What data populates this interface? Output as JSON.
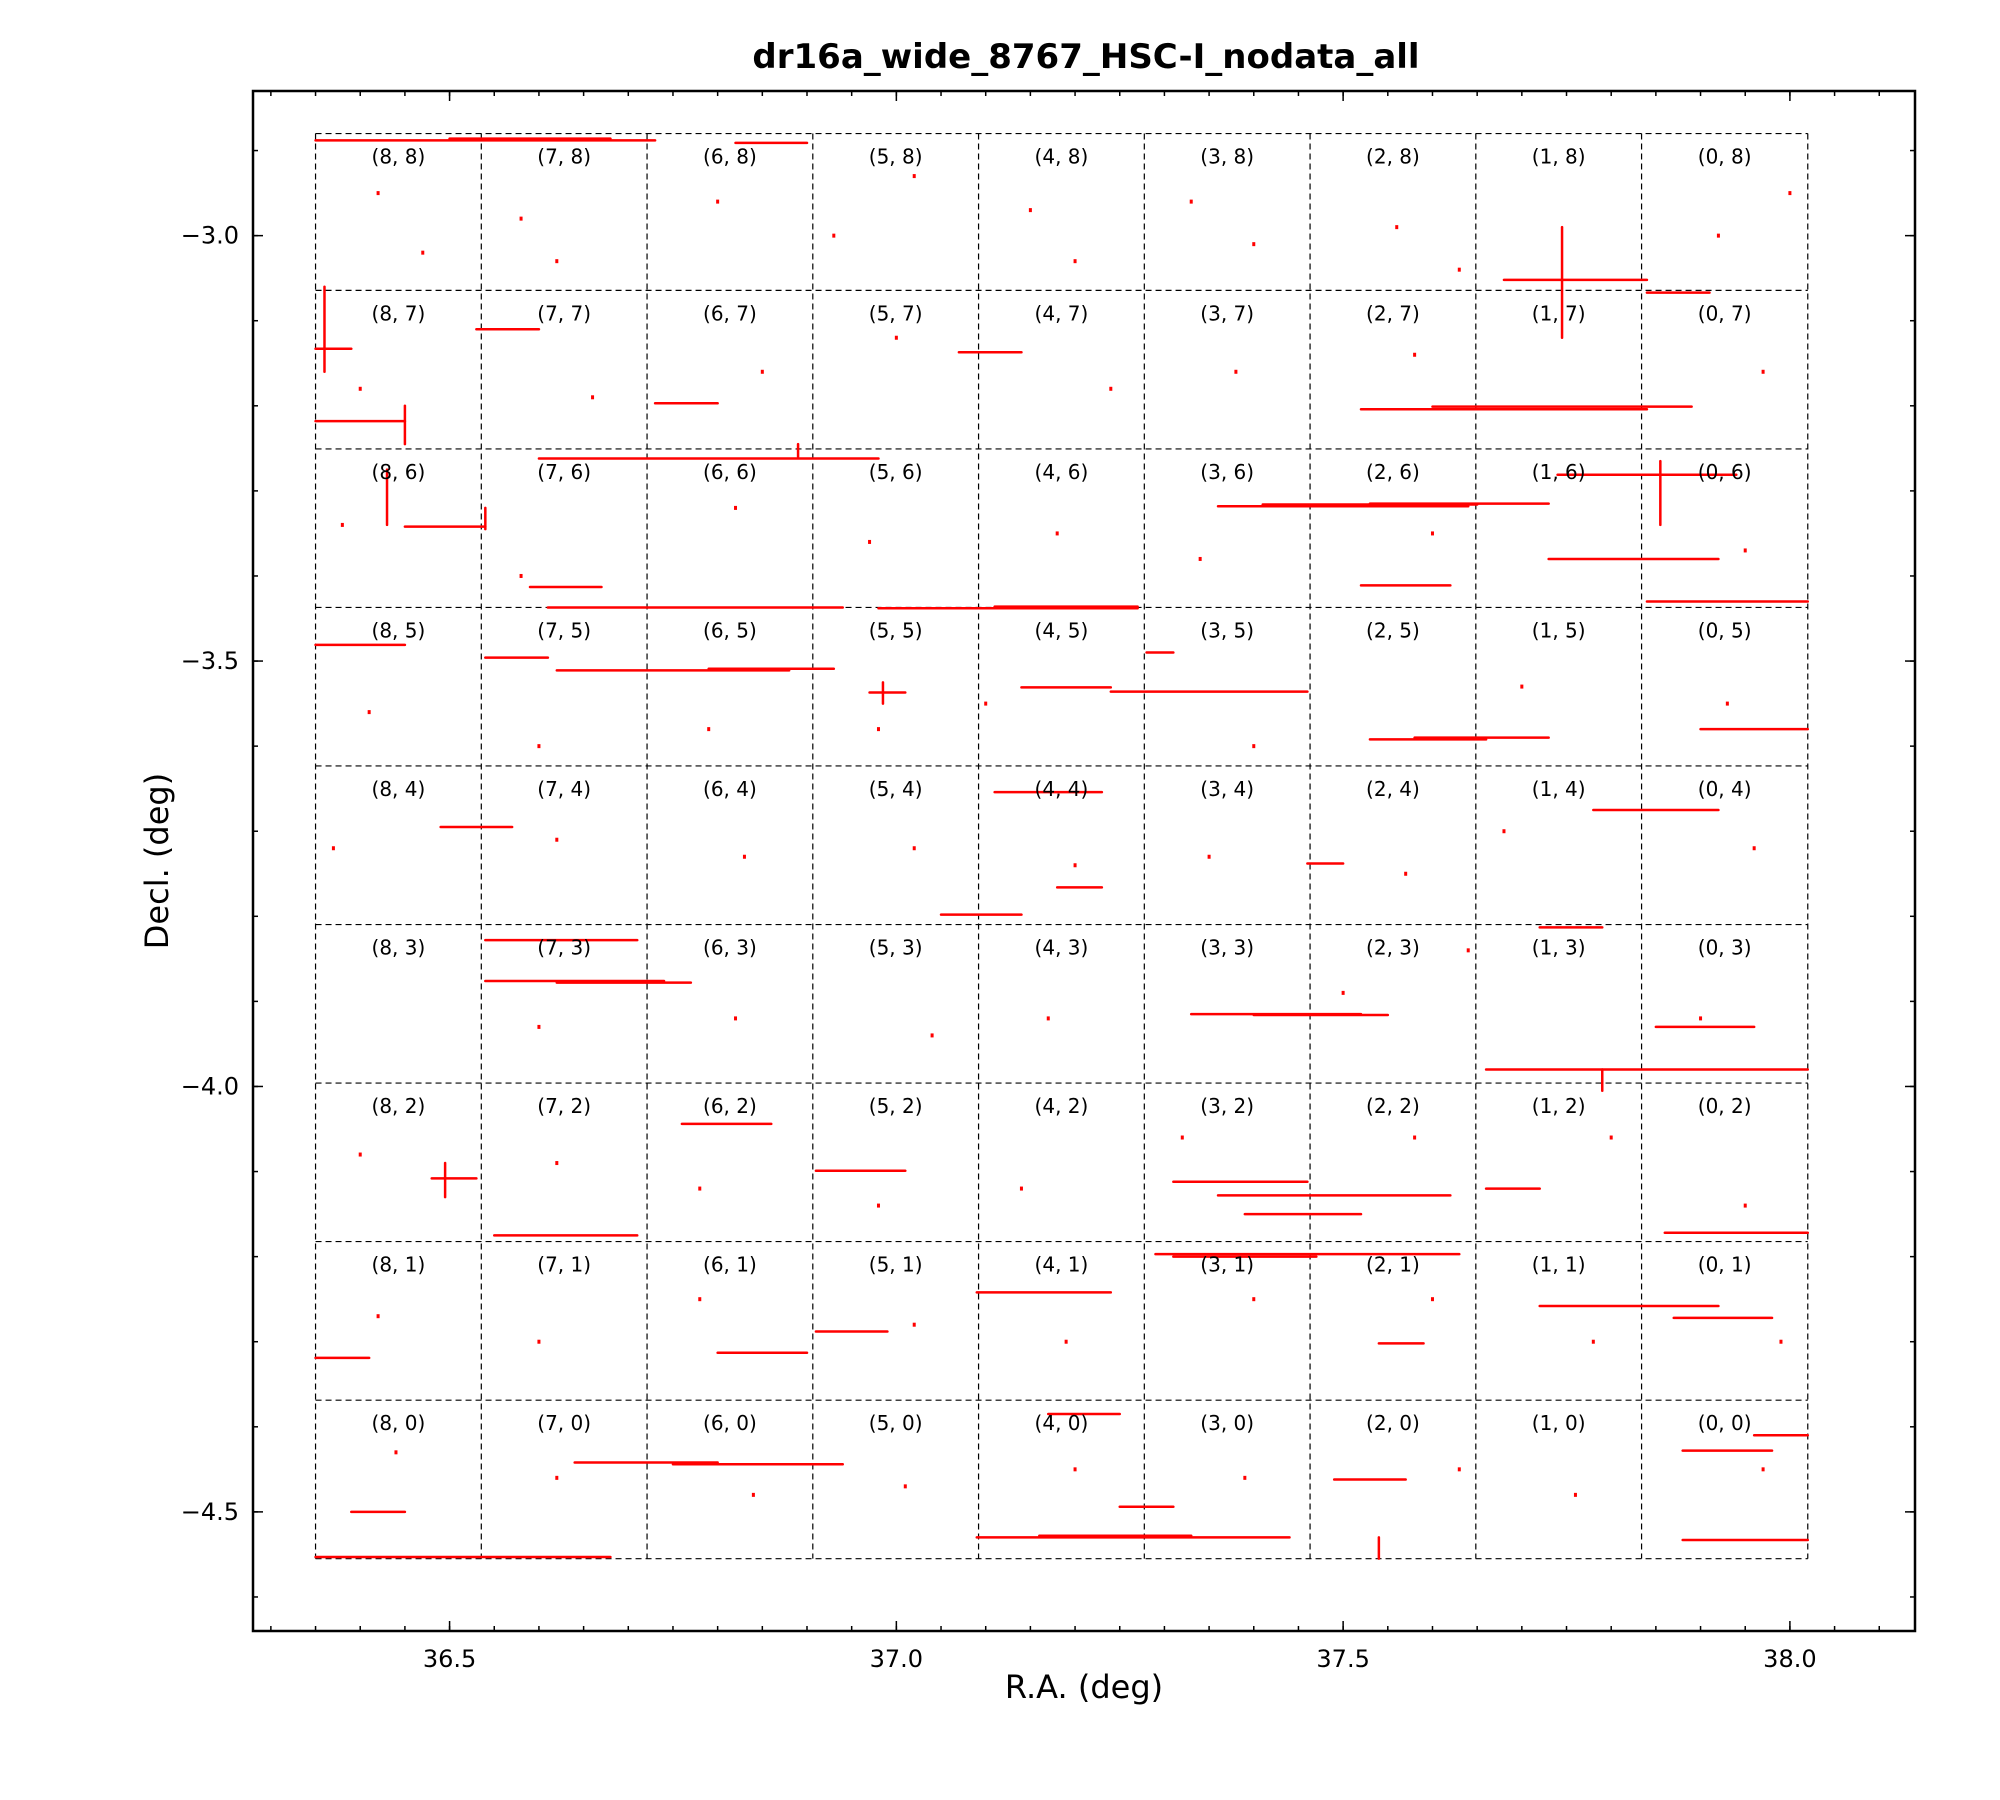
{
  "chart_data": {
    "type": "scatter",
    "title": "dr16a_wide_8767_HSC-I_nodata_all",
    "xlabel": "R.A.  (deg)",
    "ylabel": "Decl. (deg)",
    "xlim": [
      36.28,
      38.14
    ],
    "ylim": [
      -4.64,
      -2.83
    ],
    "x_ticks": [
      {
        "value": 36.5,
        "label": "36.5"
      },
      {
        "value": 37.0,
        "label": "37.0"
      },
      {
        "value": 37.5,
        "label": "37.5"
      },
      {
        "value": 38.0,
        "label": "38.0"
      }
    ],
    "y_ticks": [
      {
        "value": -3.0,
        "label": "−3.0"
      },
      {
        "value": -3.5,
        "label": "−3.5"
      },
      {
        "value": -4.0,
        "label": "−4.0"
      },
      {
        "value": -4.5,
        "label": "−4.5"
      }
    ],
    "minor_tick_step_x": 0.05,
    "minor_tick_step_y": 0.1,
    "patch_grid": {
      "ra_edges": [
        36.35,
        36.5355,
        36.721,
        36.9065,
        37.092,
        37.2775,
        37.463,
        37.6485,
        37.834,
        38.02
      ],
      "dec_edges": [
        -4.555,
        -4.3687,
        -4.1823,
        -3.996,
        -3.8097,
        -3.6233,
        -3.437,
        -3.2507,
        -3.0643,
        -2.88
      ],
      "labels_by_row_top_to_bottom": [
        [
          "(8, 8)",
          "(7, 8)",
          "(6, 8)",
          "(5, 8)",
          "(4, 8)",
          "(3, 8)",
          "(2, 8)",
          "(1, 8)",
          "(0, 8)"
        ],
        [
          "(8, 7)",
          "(7, 7)",
          "(6, 7)",
          "(5, 7)",
          "(4, 7)",
          "(3, 7)",
          "(2, 7)",
          "(1, 7)",
          "(0, 7)"
        ],
        [
          "(8, 6)",
          "(7, 6)",
          "(6, 6)",
          "(5, 6)",
          "(4, 6)",
          "(3, 6)",
          "(2, 6)",
          "(1, 6)",
          "(0, 6)"
        ],
        [
          "(8, 5)",
          "(7, 5)",
          "(6, 5)",
          "(5, 5)",
          "(4, 5)",
          "(3, 5)",
          "(2, 5)",
          "(1, 5)",
          "(0, 5)"
        ],
        [
          "(8, 4)",
          "(7, 4)",
          "(6, 4)",
          "(5, 4)",
          "(4, 4)",
          "(3, 4)",
          "(2, 4)",
          "(1, 4)",
          "(0, 4)"
        ],
        [
          "(8, 3)",
          "(7, 3)",
          "(6, 3)",
          "(5, 3)",
          "(4, 3)",
          "(3, 3)",
          "(2, 3)",
          "(1, 3)",
          "(0, 3)"
        ],
        [
          "(8, 2)",
          "(7, 2)",
          "(6, 2)",
          "(5, 2)",
          "(4, 2)",
          "(3, 2)",
          "(2, 2)",
          "(1, 2)",
          "(0, 2)"
        ],
        [
          "(8, 1)",
          "(7, 1)",
          "(6, 1)",
          "(5, 1)",
          "(4, 1)",
          "(3, 1)",
          "(2, 1)",
          "(1, 1)",
          "(0, 1)"
        ],
        [
          "(8, 0)",
          "(7, 0)",
          "(6, 0)",
          "(5, 0)",
          "(4, 0)",
          "(3, 0)",
          "(2, 0)",
          "(1, 0)",
          "(0, 0)"
        ]
      ]
    },
    "mask_color": "#ff0000",
    "mask_segments": [
      {
        "ra": [
          36.35,
          36.73
        ],
        "dec": [
          -2.888,
          -2.888
        ]
      },
      {
        "ra": [
          36.5,
          36.68
        ],
        "dec": [
          -2.886,
          -2.886
        ]
      },
      {
        "ra": [
          36.82,
          36.9
        ],
        "dec": [
          -2.891,
          -2.891
        ]
      },
      {
        "ra": [
          37.68,
          37.84
        ],
        "dec": [
          -3.052,
          -3.052
        ]
      },
      {
        "ra": [
          37.745,
          37.745
        ],
        "dec": [
          -2.99,
          -3.12
        ]
      },
      {
        "ra": [
          37.84,
          37.91
        ],
        "dec": [
          -3.067,
          -3.067
        ]
      },
      {
        "ra": [
          36.36,
          36.36
        ],
        "dec": [
          -3.06,
          -3.16
        ]
      },
      {
        "ra": [
          36.35,
          36.39
        ],
        "dec": [
          -3.133,
          -3.133
        ]
      },
      {
        "ra": [
          36.35,
          36.45
        ],
        "dec": [
          -3.218,
          -3.218
        ]
      },
      {
        "ra": [
          36.45,
          36.45
        ],
        "dec": [
          -3.2,
          -3.245
        ]
      },
      {
        "ra": [
          36.53,
          36.6
        ],
        "dec": [
          -3.11,
          -3.11
        ]
      },
      {
        "ra": [
          36.73,
          36.8
        ],
        "dec": [
          -3.197,
          -3.197
        ]
      },
      {
        "ra": [
          37.07,
          37.14
        ],
        "dec": [
          -3.137,
          -3.137
        ]
      },
      {
        "ra": [
          37.52,
          37.84
        ],
        "dec": [
          -3.204,
          -3.204
        ]
      },
      {
        "ra": [
          37.6,
          37.89
        ],
        "dec": [
          -3.201,
          -3.201
        ]
      },
      {
        "ra": [
          36.89,
          36.89
        ],
        "dec": [
          -3.245,
          -3.26
        ]
      },
      {
        "ra": [
          36.6,
          36.98
        ],
        "dec": [
          -3.262,
          -3.262
        ]
      },
      {
        "ra": [
          36.43,
          36.43
        ],
        "dec": [
          -3.275,
          -3.34
        ]
      },
      {
        "ra": [
          36.45,
          36.54
        ],
        "dec": [
          -3.342,
          -3.342
        ]
      },
      {
        "ra": [
          36.54,
          36.54
        ],
        "dec": [
          -3.32,
          -3.345
        ]
      },
      {
        "ra": [
          37.36,
          37.64
        ],
        "dec": [
          -3.318,
          -3.318
        ]
      },
      {
        "ra": [
          37.41,
          37.65
        ],
        "dec": [
          -3.316,
          -3.316
        ]
      },
      {
        "ra": [
          37.53,
          37.73
        ],
        "dec": [
          -3.315,
          -3.315
        ]
      },
      {
        "ra": [
          37.74,
          37.94
        ],
        "dec": [
          -3.281,
          -3.281
        ]
      },
      {
        "ra": [
          37.855,
          37.855
        ],
        "dec": [
          -3.265,
          -3.34
        ]
      },
      {
        "ra": [
          37.73,
          37.92
        ],
        "dec": [
          -3.38,
          -3.38
        ]
      },
      {
        "ra": [
          37.52,
          37.62
        ],
        "dec": [
          -3.411,
          -3.411
        ]
      },
      {
        "ra": [
          36.59,
          36.67
        ],
        "dec": [
          -3.413,
          -3.413
        ]
      },
      {
        "ra": [
          36.61,
          36.94
        ],
        "dec": [
          -3.437,
          -3.437
        ]
      },
      {
        "ra": [
          36.98,
          37.27
        ],
        "dec": [
          -3.438,
          -3.438
        ]
      },
      {
        "ra": [
          37.11,
          37.27
        ],
        "dec": [
          -3.436,
          -3.436
        ]
      },
      {
        "ra": [
          37.84,
          38.02
        ],
        "dec": [
          -3.43,
          -3.43
        ]
      },
      {
        "ra": [
          36.35,
          36.45
        ],
        "dec": [
          -3.481,
          -3.481
        ]
      },
      {
        "ra": [
          36.54,
          36.61
        ],
        "dec": [
          -3.496,
          -3.496
        ]
      },
      {
        "ra": [
          36.62,
          36.88
        ],
        "dec": [
          -3.511,
          -3.511
        ]
      },
      {
        "ra": [
          36.79,
          36.93
        ],
        "dec": [
          -3.509,
          -3.509
        ]
      },
      {
        "ra": [
          37.14,
          37.24
        ],
        "dec": [
          -3.531,
          -3.531
        ]
      },
      {
        "ra": [
          37.24,
          37.46
        ],
        "dec": [
          -3.536,
          -3.536
        ]
      },
      {
        "ra": [
          37.28,
          37.31
        ],
        "dec": [
          -3.49,
          -3.49
        ]
      },
      {
        "ra": [
          36.97,
          37.01
        ],
        "dec": [
          -3.537,
          -3.537
        ]
      },
      {
        "ra": [
          36.985,
          36.985
        ],
        "dec": [
          -3.525,
          -3.55
        ]
      },
      {
        "ra": [
          37.58,
          37.73
        ],
        "dec": [
          -3.59,
          -3.59
        ]
      },
      {
        "ra": [
          37.53,
          37.66
        ],
        "dec": [
          -3.592,
          -3.592
        ]
      },
      {
        "ra": [
          37.9,
          38.02
        ],
        "dec": [
          -3.58,
          -3.58
        ]
      },
      {
        "ra": [
          37.11,
          37.23
        ],
        "dec": [
          -3.654,
          -3.654
        ]
      },
      {
        "ra": [
          36.49,
          36.57
        ],
        "dec": [
          -3.695,
          -3.695
        ]
      },
      {
        "ra": [
          37.78,
          37.92
        ],
        "dec": [
          -3.675,
          -3.675
        ]
      },
      {
        "ra": [
          37.46,
          37.5
        ],
        "dec": [
          -3.738,
          -3.738
        ]
      },
      {
        "ra": [
          37.72,
          37.79
        ],
        "dec": [
          -3.813,
          -3.813
        ]
      },
      {
        "ra": [
          37.18,
          37.23
        ],
        "dec": [
          -3.766,
          -3.766
        ]
      },
      {
        "ra": [
          37.05,
          37.14
        ],
        "dec": [
          -3.798,
          -3.798
        ]
      },
      {
        "ra": [
          36.54,
          36.71
        ],
        "dec": [
          -3.828,
          -3.828
        ]
      },
      {
        "ra": [
          36.54,
          36.74
        ],
        "dec": [
          -3.876,
          -3.876
        ]
      },
      {
        "ra": [
          36.62,
          36.77
        ],
        "dec": [
          -3.878,
          -3.878
        ]
      },
      {
        "ra": [
          37.33,
          37.52
        ],
        "dec": [
          -3.915,
          -3.915
        ]
      },
      {
        "ra": [
          37.4,
          37.55
        ],
        "dec": [
          -3.916,
          -3.916
        ]
      },
      {
        "ra": [
          37.85,
          37.96
        ],
        "dec": [
          -3.93,
          -3.93
        ]
      },
      {
        "ra": [
          37.66,
          38.02
        ],
        "dec": [
          -3.98,
          -3.98
        ]
      },
      {
        "ra": [
          37.79,
          37.79
        ],
        "dec": [
          -3.98,
          -4.005
        ]
      },
      {
        "ra": [
          36.48,
          36.53
        ],
        "dec": [
          -4.108,
          -4.108
        ]
      },
      {
        "ra": [
          36.495,
          36.495
        ],
        "dec": [
          -4.09,
          -4.13
        ]
      },
      {
        "ra": [
          36.76,
          36.86
        ],
        "dec": [
          -4.044,
          -4.044
        ]
      },
      {
        "ra": [
          36.91,
          37.01
        ],
        "dec": [
          -4.099,
          -4.099
        ]
      },
      {
        "ra": [
          37.31,
          37.46
        ],
        "dec": [
          -4.112,
          -4.112
        ]
      },
      {
        "ra": [
          37.36,
          37.62
        ],
        "dec": [
          -4.128,
          -4.128
        ]
      },
      {
        "ra": [
          37.39,
          37.52
        ],
        "dec": [
          -4.15,
          -4.15
        ]
      },
      {
        "ra": [
          37.66,
          37.72
        ],
        "dec": [
          -4.12,
          -4.12
        ]
      },
      {
        "ra": [
          37.86,
          38.02
        ],
        "dec": [
          -4.172,
          -4.172
        ]
      },
      {
        "ra": [
          36.55,
          36.71
        ],
        "dec": [
          -4.175,
          -4.175
        ]
      },
      {
        "ra": [
          37.29,
          37.63
        ],
        "dec": [
          -4.197,
          -4.197
        ]
      },
      {
        "ra": [
          37.31,
          37.47
        ],
        "dec": [
          -4.2,
          -4.2
        ]
      },
      {
        "ra": [
          37.09,
          37.24
        ],
        "dec": [
          -4.242,
          -4.242
        ]
      },
      {
        "ra": [
          37.72,
          37.92
        ],
        "dec": [
          -4.258,
          -4.258
        ]
      },
      {
        "ra": [
          37.87,
          37.98
        ],
        "dec": [
          -4.272,
          -4.272
        ]
      },
      {
        "ra": [
          36.91,
          36.99
        ],
        "dec": [
          -4.288,
          -4.288
        ]
      },
      {
        "ra": [
          36.8,
          36.9
        ],
        "dec": [
          -4.313,
          -4.313
        ]
      },
      {
        "ra": [
          36.35,
          36.41
        ],
        "dec": [
          -4.319,
          -4.319
        ]
      },
      {
        "ra": [
          37.54,
          37.59
        ],
        "dec": [
          -4.302,
          -4.302
        ]
      },
      {
        "ra": [
          36.64,
          36.8
        ],
        "dec": [
          -4.442,
          -4.442
        ]
      },
      {
        "ra": [
          36.75,
          36.94
        ],
        "dec": [
          -4.444,
          -4.444
        ]
      },
      {
        "ra": [
          37.88,
          37.98
        ],
        "dec": [
          -4.428,
          -4.428
        ]
      },
      {
        "ra": [
          37.96,
          38.02
        ],
        "dec": [
          -4.41,
          -4.41
        ]
      },
      {
        "ra": [
          37.17,
          37.25
        ],
        "dec": [
          -4.385,
          -4.385
        ]
      },
      {
        "ra": [
          37.25,
          37.31
        ],
        "dec": [
          -4.494,
          -4.494
        ]
      },
      {
        "ra": [
          36.39,
          36.45
        ],
        "dec": [
          -4.5,
          -4.5
        ]
      },
      {
        "ra": [
          37.09,
          37.44
        ],
        "dec": [
          -4.53,
          -4.53
        ]
      },
      {
        "ra": [
          37.16,
          37.33
        ],
        "dec": [
          -4.528,
          -4.528
        ]
      },
      {
        "ra": [
          37.88,
          38.02
        ],
        "dec": [
          -4.533,
          -4.533
        ]
      },
      {
        "ra": [
          36.35,
          36.68
        ],
        "dec": [
          -4.553,
          -4.553
        ]
      },
      {
        "ra": [
          37.49,
          37.57
        ],
        "dec": [
          -4.462,
          -4.462
        ]
      },
      {
        "ra": [
          37.54,
          37.54
        ],
        "dec": [
          -4.53,
          -4.555
        ]
      }
    ],
    "mask_dots": [
      [
        36.42,
        -2.95
      ],
      [
        36.47,
        -3.02
      ],
      [
        36.58,
        -2.98
      ],
      [
        36.62,
        -3.03
      ],
      [
        36.8,
        -2.96
      ],
      [
        36.93,
        -3.0
      ],
      [
        37.02,
        -2.93
      ],
      [
        37.15,
        -2.97
      ],
      [
        37.2,
        -3.03
      ],
      [
        37.33,
        -2.96
      ],
      [
        37.4,
        -3.01
      ],
      [
        37.56,
        -2.99
      ],
      [
        37.63,
        -3.04
      ],
      [
        37.92,
        -3.0
      ],
      [
        38.0,
        -2.95
      ],
      [
        36.4,
        -3.18
      ],
      [
        36.66,
        -3.19
      ],
      [
        36.85,
        -3.16
      ],
      [
        37.0,
        -3.12
      ],
      [
        37.24,
        -3.18
      ],
      [
        37.38,
        -3.16
      ],
      [
        37.58,
        -3.14
      ],
      [
        37.97,
        -3.16
      ],
      [
        36.38,
        -3.34
      ],
      [
        36.58,
        -3.4
      ],
      [
        36.82,
        -3.32
      ],
      [
        36.97,
        -3.36
      ],
      [
        37.18,
        -3.35
      ],
      [
        37.34,
        -3.38
      ],
      [
        37.6,
        -3.35
      ],
      [
        37.95,
        -3.37
      ],
      [
        36.41,
        -3.56
      ],
      [
        36.6,
        -3.6
      ],
      [
        36.79,
        -3.58
      ],
      [
        36.98,
        -3.58
      ],
      [
        37.1,
        -3.55
      ],
      [
        37.4,
        -3.6
      ],
      [
        37.7,
        -3.53
      ],
      [
        37.93,
        -3.55
      ],
      [
        36.37,
        -3.72
      ],
      [
        36.62,
        -3.71
      ],
      [
        36.83,
        -3.73
      ],
      [
        37.02,
        -3.72
      ],
      [
        37.2,
        -3.74
      ],
      [
        37.35,
        -3.73
      ],
      [
        37.57,
        -3.75
      ],
      [
        37.68,
        -3.7
      ],
      [
        37.96,
        -3.72
      ],
      [
        36.6,
        -3.93
      ],
      [
        36.82,
        -3.92
      ],
      [
        37.04,
        -3.94
      ],
      [
        37.17,
        -3.92
      ],
      [
        37.5,
        -3.89
      ],
      [
        37.64,
        -3.84
      ],
      [
        37.9,
        -3.92
      ],
      [
        36.4,
        -4.08
      ],
      [
        36.62,
        -4.09
      ],
      [
        36.78,
        -4.12
      ],
      [
        36.98,
        -4.14
      ],
      [
        37.14,
        -4.12
      ],
      [
        37.32,
        -4.06
      ],
      [
        37.58,
        -4.06
      ],
      [
        37.8,
        -4.06
      ],
      [
        37.95,
        -4.14
      ],
      [
        36.42,
        -4.27
      ],
      [
        36.6,
        -4.3
      ],
      [
        36.78,
        -4.25
      ],
      [
        37.02,
        -4.28
      ],
      [
        37.19,
        -4.3
      ],
      [
        37.4,
        -4.25
      ],
      [
        37.6,
        -4.25
      ],
      [
        37.78,
        -4.3
      ],
      [
        37.99,
        -4.3
      ],
      [
        36.44,
        -4.43
      ],
      [
        36.62,
        -4.46
      ],
      [
        36.84,
        -4.48
      ],
      [
        37.01,
        -4.47
      ],
      [
        37.2,
        -4.45
      ],
      [
        37.39,
        -4.46
      ],
      [
        37.63,
        -4.45
      ],
      [
        37.76,
        -4.48
      ],
      [
        37.97,
        -4.45
      ]
    ]
  }
}
